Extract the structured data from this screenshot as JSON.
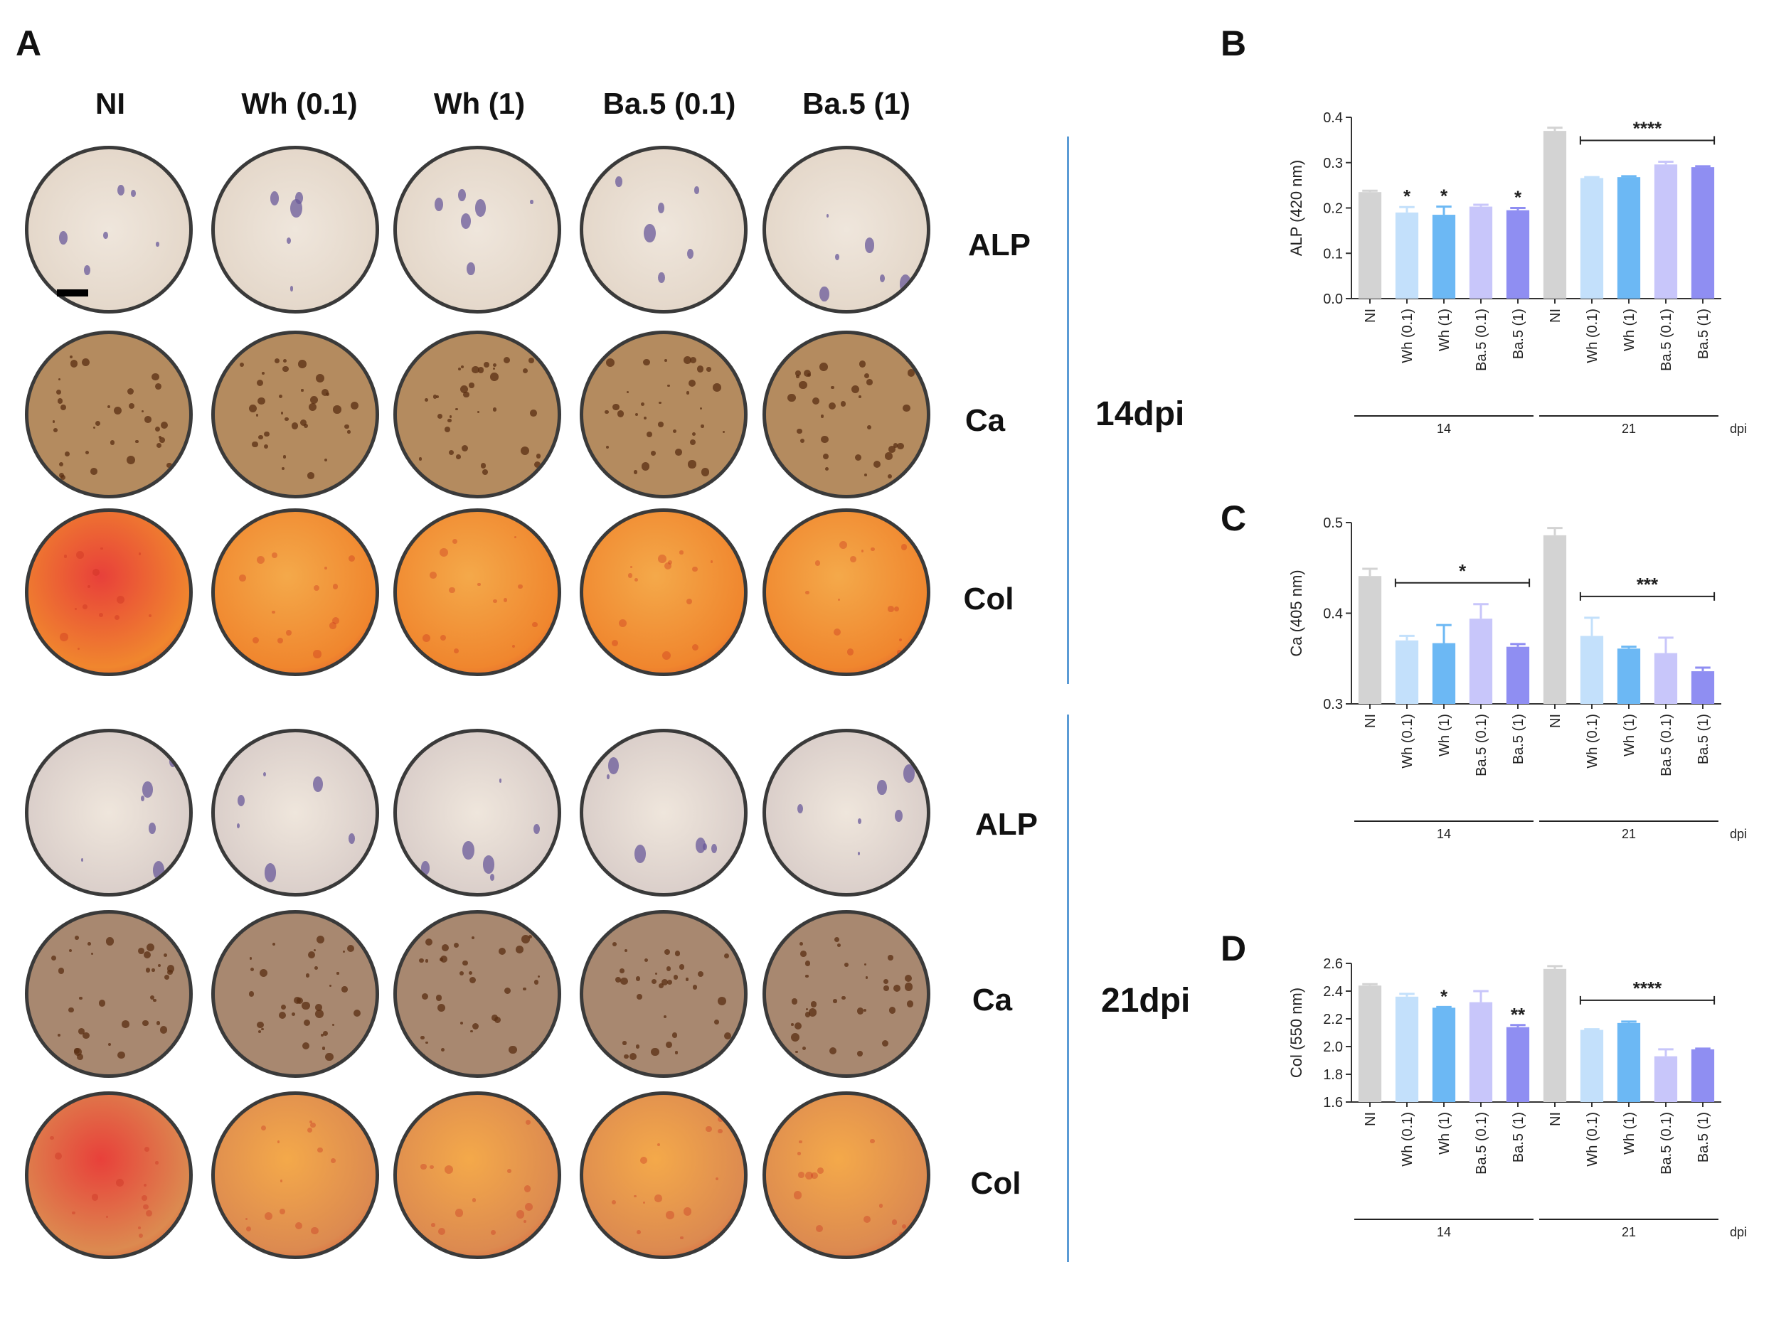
{
  "figure": {
    "panel_letters": {
      "a": "A",
      "b": "B",
      "c": "C",
      "d": "D"
    },
    "columns": [
      "NI",
      "Wh (0.1)",
      "Wh (1)",
      "Ba.5 (0.1)",
      "Ba.5 (1)"
    ],
    "row_labels_14": [
      "ALP",
      "Ca",
      "Col"
    ],
    "row_labels_21": [
      "ALP",
      "Ca",
      "Col"
    ],
    "dpi_14": "14dpi",
    "dpi_21": "21dpi",
    "stain_colors": {
      "ALP14": "#e3d6c8",
      "Ca14": "#b48b5f",
      "Col14": "#f0862e",
      "ALP21": "#d8ccc8",
      "Ca21": "#a88870",
      "Col21": "#dc8a50"
    }
  },
  "chart_data": [
    {
      "panel": "B",
      "type": "bar",
      "ylabel": "ALP (420 nm)",
      "ylim": [
        0.0,
        0.4
      ],
      "yticks": [
        "0.0",
        "0.1",
        "0.2",
        "0.3",
        "0.4"
      ],
      "categories": [
        "NI",
        "Wh (0.1)",
        "Wh (1)",
        "Ba.5 (0.1)",
        "Ba.5 (1)",
        "NI",
        "Wh (0.1)",
        "Wh (1)",
        "Ba.5 (0.1)",
        "Ba.5 (1)"
      ],
      "values": [
        0.235,
        0.19,
        0.185,
        0.203,
        0.195,
        0.37,
        0.266,
        0.268,
        0.296,
        0.29
      ],
      "errors": [
        0.003,
        0.012,
        0.018,
        0.004,
        0.005,
        0.007,
        0.002,
        0.002,
        0.006,
        0.002
      ],
      "colors": [
        "#d3d3d3",
        "#c3e0fb",
        "#6cb8f4",
        "#c8c6fa",
        "#8f8ef2",
        "#d3d3d3",
        "#c3e0fb",
        "#6cb8f4",
        "#c8c6fa",
        "#8f8ef2"
      ],
      "stars": [
        "",
        "*",
        "*",
        "",
        "*",
        "",
        "",
        "",
        "",
        ""
      ],
      "brackets": [
        {
          "from": 6,
          "to": 9,
          "label": "****"
        }
      ],
      "groups": [
        {
          "label": "14",
          "from": 0,
          "to": 4
        },
        {
          "label": "21",
          "from": 5,
          "to": 9
        }
      ],
      "group_unit": "dpi"
    },
    {
      "panel": "C",
      "type": "bar",
      "ylabel": "Ca (405 nm)",
      "ylim": [
        0.3,
        0.5
      ],
      "yticks": [
        "0.3",
        "0.4",
        "0.5"
      ],
      "categories": [
        "NI",
        "Wh (0.1)",
        "Wh (1)",
        "Ba.5 (0.1)",
        "Ba.5 (1)",
        "NI",
        "Wh (0.1)",
        "Wh (1)",
        "Ba.5 (0.1)",
        "Ba.5 (1)"
      ],
      "values": [
        0.441,
        0.37,
        0.367,
        0.394,
        0.363,
        0.486,
        0.375,
        0.361,
        0.356,
        0.336
      ],
      "errors": [
        0.008,
        0.005,
        0.02,
        0.016,
        0.003,
        0.008,
        0.02,
        0.002,
        0.017,
        0.004
      ],
      "colors": [
        "#d3d3d3",
        "#c3e0fb",
        "#6cb8f4",
        "#c8c6fa",
        "#8f8ef2",
        "#d3d3d3",
        "#c3e0fb",
        "#6cb8f4",
        "#c8c6fa",
        "#8f8ef2"
      ],
      "stars": [
        "",
        "",
        "",
        "",
        "",
        "",
        "",
        "",
        "",
        ""
      ],
      "brackets": [
        {
          "from": 1,
          "to": 4,
          "label": "*"
        },
        {
          "from": 6,
          "to": 9,
          "label": "***"
        }
      ],
      "groups": [
        {
          "label": "14",
          "from": 0,
          "to": 4
        },
        {
          "label": "21",
          "from": 5,
          "to": 9
        }
      ],
      "group_unit": "dpi"
    },
    {
      "panel": "D",
      "type": "bar",
      "ylabel": "Col (550 nm)",
      "ylim": [
        1.6,
        2.6
      ],
      "yticks": [
        "1.6",
        "1.8",
        "2.0",
        "2.2",
        "2.4",
        "2.6"
      ],
      "categories": [
        "NI",
        "Wh (0.1)",
        "Wh (1)",
        "Ba.5 (0.1)",
        "Ba.5 (1)",
        "NI",
        "Wh (0.1)",
        "Wh (1)",
        "Ba.5 (0.1)",
        "Ba.5 (1)"
      ],
      "values": [
        2.44,
        2.36,
        2.28,
        2.32,
        2.14,
        2.56,
        2.12,
        2.17,
        1.93,
        1.98
      ],
      "errors": [
        0.01,
        0.02,
        0.005,
        0.08,
        0.015,
        0.02,
        0.005,
        0.01,
        0.05,
        0.005
      ],
      "colors": [
        "#d3d3d3",
        "#c3e0fb",
        "#6cb8f4",
        "#c8c6fa",
        "#8f8ef2",
        "#d3d3d3",
        "#c3e0fb",
        "#6cb8f4",
        "#c8c6fa",
        "#8f8ef2"
      ],
      "stars": [
        "",
        "",
        "*",
        "",
        "**",
        "",
        "",
        "",
        "",
        ""
      ],
      "brackets": [
        {
          "from": 6,
          "to": 9,
          "label": "****"
        }
      ],
      "groups": [
        {
          "label": "14",
          "from": 0,
          "to": 4
        },
        {
          "label": "21",
          "from": 5,
          "to": 9
        }
      ],
      "group_unit": "dpi"
    }
  ]
}
